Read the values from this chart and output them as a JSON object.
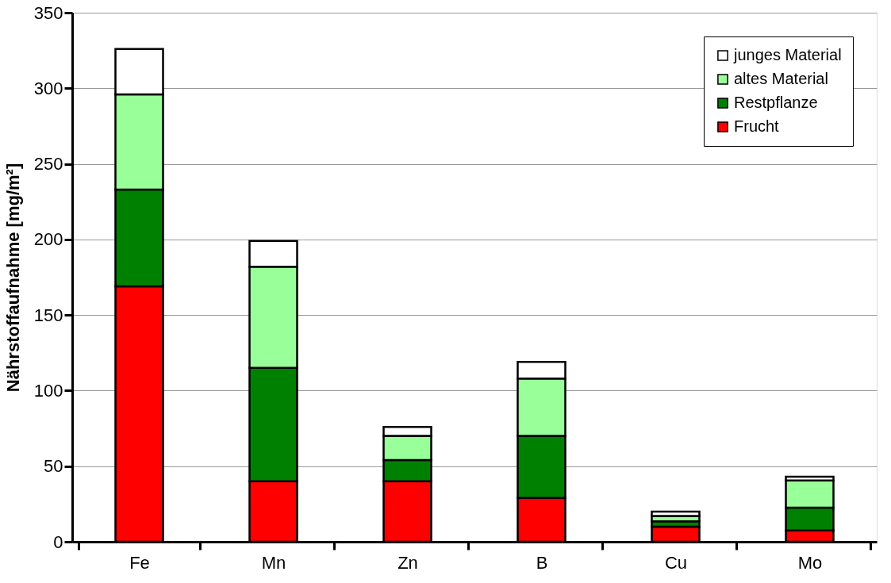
{
  "chart_data": {
    "type": "bar",
    "stacked": true,
    "ylabel": "Nährstoffaufnahme [mg/m²]",
    "categories": [
      "Fe",
      "Mn",
      "Zn",
      "B",
      "Cu",
      "Mo"
    ],
    "series": [
      {
        "name": "Frucht",
        "color": "#ff0000",
        "values": [
          169,
          40,
          40,
          29,
          10,
          7.5
        ]
      },
      {
        "name": "Restpflanze",
        "color": "#008000",
        "values": [
          64,
          75,
          14,
          41,
          3.5,
          15
        ]
      },
      {
        "name": "altes Material",
        "color": "#99ff99",
        "values": [
          63,
          67,
          16,
          38,
          3.5,
          18
        ]
      },
      {
        "name": "junges Material",
        "color": "#ffffff",
        "values": [
          30,
          17,
          6,
          11,
          3,
          2.5
        ]
      }
    ],
    "ylim": [
      0,
      350
    ],
    "yticks": [
      0,
      50,
      100,
      150,
      200,
      250,
      300,
      350
    ],
    "grid": "y",
    "legend": "top right"
  }
}
